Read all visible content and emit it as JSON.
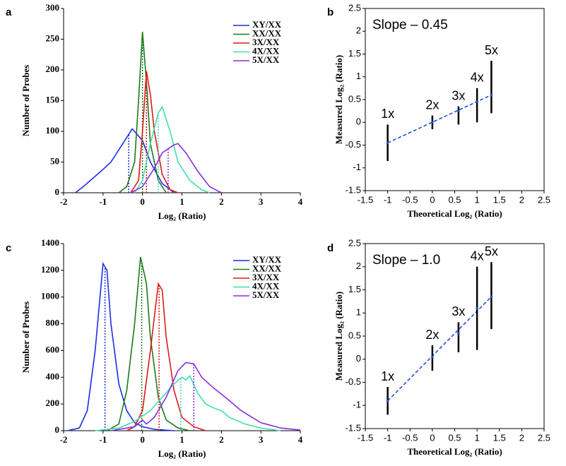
{
  "chart_data": [
    {
      "type": "line",
      "panel_label": "a",
      "x_label": "Log₂ (Ratio)",
      "y_label": "Number of Probes",
      "xlim": [
        -2,
        4
      ],
      "xticks": [
        -2,
        -1,
        0,
        1,
        2,
        3,
        4
      ],
      "ylim": [
        0,
        300
      ],
      "yticks": [
        0,
        50,
        100,
        150,
        200,
        250,
        300
      ],
      "series": [
        {
          "name": "XY/XX",
          "color": "#1a2ee0",
          "x": [
            -1.7,
            -1.5,
            -1.0,
            -0.8,
            -0.5,
            -0.26,
            0,
            0.2,
            0.5,
            0.8
          ],
          "values": [
            0,
            10,
            38,
            50,
            80,
            104,
            85,
            50,
            15,
            0
          ],
          "mean": -0.35
        },
        {
          "name": "XX/XX",
          "color": "#1a7a1a",
          "x": [
            -0.6,
            -0.4,
            -0.2,
            -0.1,
            0,
            0.1,
            0.2,
            0.4,
            0.6
          ],
          "values": [
            0,
            10,
            50,
            150,
            262,
            180,
            80,
            20,
            0
          ],
          "mean": 0
        },
        {
          "name": "3X/XX",
          "color": "#e01818",
          "x": [
            -0.3,
            -0.1,
            0,
            0.1,
            0.2,
            0.3,
            0.5,
            0.7,
            0.9
          ],
          "values": [
            0,
            20,
            100,
            198,
            160,
            100,
            30,
            5,
            0
          ],
          "mean": 0.1
        },
        {
          "name": "4X/XX",
          "color": "#40e0a8",
          "x": [
            -0.2,
            0,
            0.2,
            0.4,
            0.5,
            0.7,
            0.9,
            1.2,
            1.5,
            1.7
          ],
          "values": [
            0,
            20,
            80,
            130,
            140,
            100,
            50,
            20,
            5,
            0
          ],
          "mean": 0.4
        },
        {
          "name": "5X/XX",
          "color": "#8a2be2",
          "x": [
            -0.3,
            0,
            0.3,
            0.5,
            0.8,
            0.9,
            1.1,
            1.4,
            1.7,
            2
          ],
          "values": [
            0,
            10,
            40,
            65,
            78,
            80,
            65,
            35,
            10,
            0
          ],
          "mean": 0.65
        }
      ]
    },
    {
      "type": "errorbar",
      "panel_label": "b",
      "annotation": "Slope – 0.45",
      "box": true,
      "x_label": "Theoretical Log₂ (Ratio)",
      "y_label": "Measured Log₂ (Ratio)",
      "xlim": [
        -1.5,
        2.5
      ],
      "xticks": [
        -1.5,
        -1,
        -0.5,
        0,
        0.5,
        1,
        1.5,
        2,
        2.5
      ],
      "ylim": [
        -1.5,
        2.5
      ],
      "yticks": [
        -1.5,
        -1,
        -0.5,
        0,
        0.5,
        1,
        1.5,
        2,
        2.5
      ],
      "point_labels": [
        "1x",
        "2x",
        "3x",
        "4x",
        "5x"
      ],
      "x": [
        -1,
        0,
        0.585,
        1,
        1.32
      ],
      "values": [
        -0.45,
        0,
        0.25,
        0.45,
        0.6
      ],
      "low": [
        -0.85,
        -0.15,
        -0.05,
        0,
        0.2
      ],
      "high": [
        -0.05,
        0.15,
        0.35,
        0.75,
        1.35
      ],
      "color": "#000000",
      "fit": {
        "x": [
          -1,
          1.32
        ],
        "values": [
          -0.45,
          0.6
        ],
        "color": "#2050d0"
      }
    },
    {
      "type": "line",
      "panel_label": "c",
      "x_label": "Log₂ (Ratio)",
      "y_label": "Number of Probes",
      "xlim": [
        -2,
        4
      ],
      "xticks": [
        -2,
        -1,
        0,
        1,
        2,
        3,
        4
      ],
      "ylim": [
        0,
        1400
      ],
      "yticks": [
        0,
        200,
        400,
        600,
        800,
        1000,
        1200,
        1400
      ],
      "series": [
        {
          "name": "XY/XX",
          "color": "#1a2ee0",
          "x": [
            -1.9,
            -1.6,
            -1.4,
            -1.2,
            -1.0,
            -0.9,
            -0.8,
            -0.6,
            -0.4,
            -0.2,
            0,
            0.3,
            0.8
          ],
          "values": [
            0,
            20,
            150,
            600,
            1250,
            1200,
            800,
            350,
            150,
            60,
            30,
            10,
            0
          ],
          "mean": -0.95
        },
        {
          "name": "XX/XX",
          "color": "#1a7a1a",
          "x": [
            -0.9,
            -0.6,
            -0.4,
            -0.2,
            -0.05,
            0.1,
            0.2,
            0.4,
            0.6,
            0.9,
            1.2
          ],
          "values": [
            0,
            50,
            300,
            800,
            1300,
            1100,
            700,
            250,
            80,
            20,
            0
          ],
          "mean": -0.02
        },
        {
          "name": "3X/XX",
          "color": "#e01818",
          "x": [
            -0.4,
            -0.2,
            0,
            0.2,
            0.4,
            0.5,
            0.6,
            0.8,
            1,
            1.3,
            1.6
          ],
          "values": [
            0,
            30,
            150,
            600,
            1100,
            1050,
            700,
            300,
            100,
            30,
            0
          ],
          "mean": 0.42
        },
        {
          "name": "4X/XX",
          "color": "#40e0a8",
          "x": [
            -1.2,
            -0.6,
            -0.2,
            0.2,
            0.5,
            0.8,
            1.0,
            1.1,
            1.2,
            1.4,
            1.6,
            1.8,
            2,
            2.2,
            2.6,
            3,
            3.5
          ],
          "values": [
            0,
            20,
            70,
            150,
            250,
            350,
            400,
            380,
            410,
            280,
            200,
            170,
            150,
            100,
            50,
            20,
            0
          ],
          "mean": 0.97
        },
        {
          "name": "5X/XX",
          "color": "#8a2be2",
          "x": [
            -0.8,
            -0.2,
            0,
            0.1,
            0.3,
            0.6,
            0.9,
            1.1,
            1.3,
            1.5,
            1.8,
            2.1,
            2.5,
            3,
            3.5,
            4
          ],
          "values": [
            0,
            30,
            80,
            50,
            100,
            250,
            450,
            510,
            500,
            400,
            320,
            250,
            150,
            60,
            20,
            5
          ],
          "mean": 1.3
        }
      ]
    },
    {
      "type": "errorbar",
      "panel_label": "d",
      "annotation": "Slope – 1.0",
      "box": true,
      "x_label": "Theoretical Log₂ (Ratio)",
      "y_label": "Measured Log₂ (Ratio)",
      "xlim": [
        -1.5,
        2.5
      ],
      "xticks": [
        -1.5,
        -1,
        -0.5,
        0,
        0.5,
        1,
        1.5,
        2,
        2.5
      ],
      "ylim": [
        -1.5,
        2.5
      ],
      "yticks": [
        -1.5,
        -1,
        -0.5,
        0,
        0.5,
        1,
        1.5,
        2,
        2.5
      ],
      "point_labels": [
        "1x",
        "2x",
        "3x",
        "4x",
        "5x"
      ],
      "x": [
        -1,
        0,
        0.585,
        1,
        1.32
      ],
      "values": [
        -0.9,
        0.05,
        0.55,
        1.1,
        1.35
      ],
      "low": [
        -1.2,
        -0.25,
        0.15,
        0.2,
        0.65
      ],
      "high": [
        -0.6,
        0.3,
        0.8,
        2.0,
        2.1
      ],
      "color": "#000000",
      "fit": {
        "x": [
          -1,
          1.32
        ],
        "values": [
          -0.9,
          1.35
        ],
        "color": "#2050d0"
      }
    }
  ]
}
